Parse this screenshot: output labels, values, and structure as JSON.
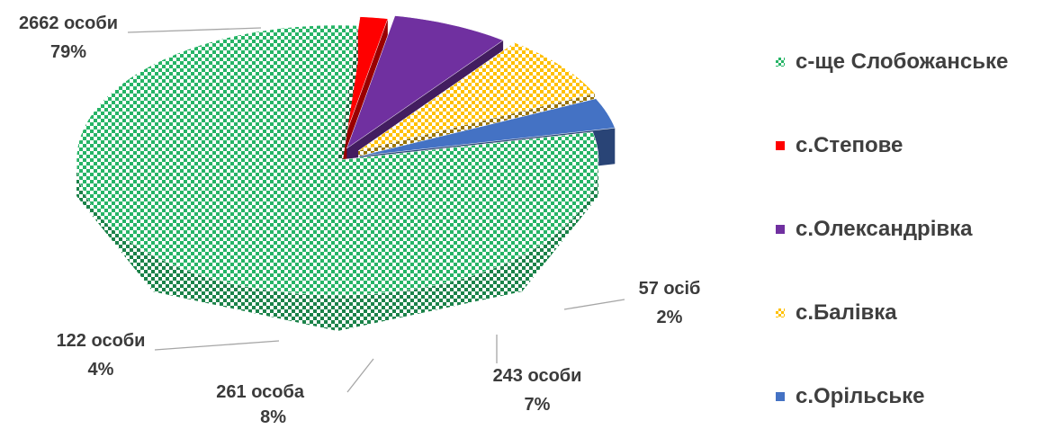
{
  "chart_data": {
    "type": "pie",
    "style": "3d-exploded",
    "series": [
      {
        "name": "с-ще Слобожанське",
        "value": 2662,
        "label_count": "2662 особи",
        "label_percent": "79%",
        "color": "#26b466",
        "pattern": "checker"
      },
      {
        "name": "с.Степове",
        "value": 57,
        "label_count": "57 осіб",
        "label_percent": "2%",
        "color": "#ff0000",
        "pattern": "solid"
      },
      {
        "name": "с.Олександрівка",
        "value": 243,
        "label_count": "243 особи",
        "label_percent": "7%",
        "color": "#7030a0",
        "pattern": "solid"
      },
      {
        "name": "с.Балівка",
        "value": 261,
        "label_count": "261 особа",
        "label_percent": "8%",
        "color": "#ffc000",
        "pattern": "checker"
      },
      {
        "name": "с.Орільське",
        "value": 122,
        "label_count": "122 особи",
        "label_percent": "4%",
        "color": "#4472c4",
        "pattern": "solid"
      }
    ],
    "legend_position": "right"
  }
}
